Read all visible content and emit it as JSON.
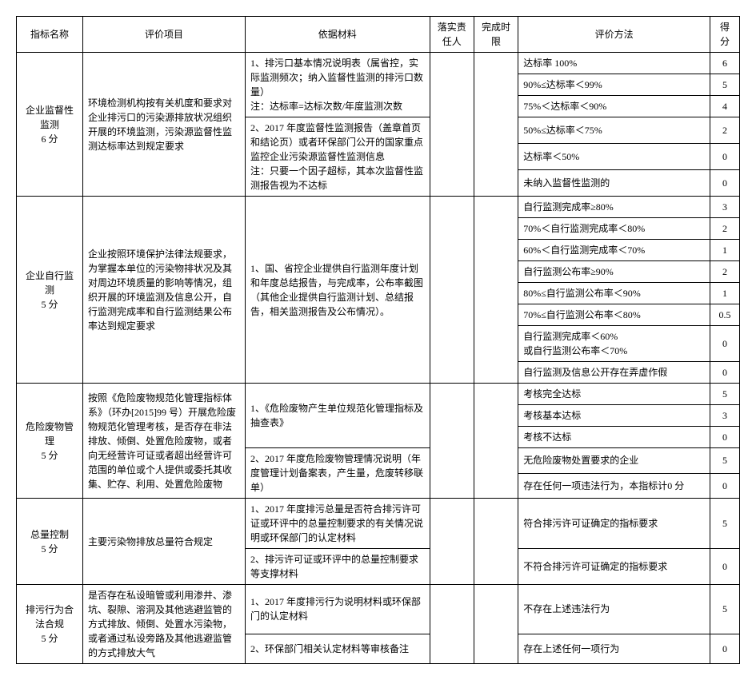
{
  "headers": {
    "indicator": "指标名称",
    "project": "评价项目",
    "material": "依据材料",
    "responsible": "落实责任人",
    "deadline": "完成时限",
    "method": "评价方法",
    "score": "得分"
  },
  "rows": [
    {
      "indicator": "企业监督性监测\n6 分",
      "project": "环境检测机构按有关机度和要求对企业排污口的污染源排放状况组织开展的环境监测，污染源监督性监测达标率达到规定要求",
      "materials": [
        "1、排污口基本情况说明表（属省控，实际监测频次；纳入监督性监测的排污口数量）\n注：达标率=达标次数/年度监测次数",
        "2、2017 年度监督性监测报告（盖章首页和结论页）或者环保部门公开的国家重点监控企业污染源监督性监测信息\n注：只要一个因子超标，其本次监督性监测报告视为不达标"
      ],
      "methods": [
        {
          "text": "达标率 100%",
          "score": "6"
        },
        {
          "text": "90%≤达标率＜99%",
          "score": "5"
        },
        {
          "text": "75%＜达标率＜90%",
          "score": "4"
        },
        {
          "text": "50%≤达标率＜75%",
          "score": "2"
        },
        {
          "text": "达标率＜50%",
          "score": "0"
        },
        {
          "text": "未纳入监督性监测的",
          "score": "0"
        }
      ]
    },
    {
      "indicator": "企业自行监测\n5 分",
      "project": "企业按照环境保护法律法规要求，为掌握本单位的污染物排状况及其对周边环境质量的影响等情况，组织开展的环境监测及信息公开，自行监测完成率和自行监测结果公布率达到规定要求",
      "materials": [
        "1、国、省控企业提供自行监测年度计划和年度总结报告，与完成率，公布率截图（其他企业提供自行监测计划、总结报告，相关监测报告及公布情况）。"
      ],
      "methods": [
        {
          "text": "自行监测完成率≥80%",
          "score": "3"
        },
        {
          "text": "70%＜自行监测完成率＜80%",
          "score": "2"
        },
        {
          "text": "60%＜自行监测完成率＜70%",
          "score": "1"
        },
        {
          "text": "自行监测公布率≥90%",
          "score": "2"
        },
        {
          "text": "80%≤自行监测公布率＜90%",
          "score": "1"
        },
        {
          "text": "70%≤自行监测公布率＜80%",
          "score": "0.5"
        },
        {
          "text": "自行监测完成率＜60%\n或自行监测公布率＜70%",
          "score": "0"
        },
        {
          "text": "自行监测及信息公开存在弄虚作假",
          "score": "0"
        }
      ]
    },
    {
      "indicator": "危险废物管理\n5 分",
      "project": "按照《危险废物规范化管理指标体系》（环办[2015]99 号）开展危险废物规范化管理考核，是否存在非法排放、倾倒、处置危险废物，或者向无经营许可证或者超出经营许可范围的单位或个人提供或委托其收集、贮存、利用、处置危险废物",
      "materials": [
        "1、《危险废物产生单位规范化管理指标及抽查表》",
        "2、2017 年度危险废物管理情况说明（年度管理计划备案表，产生量，危废转移联单）"
      ],
      "methods": [
        {
          "text": "考核完全达标",
          "score": "5"
        },
        {
          "text": "考核基本达标",
          "score": "3"
        },
        {
          "text": "考核不达标",
          "score": "0"
        },
        {
          "text": "无危险废物处置要求的企业",
          "score": "5"
        },
        {
          "text": "存在任何一项违法行为，本指标计0 分",
          "score": "0"
        }
      ]
    },
    {
      "indicator": "总量控制\n5 分",
      "project": "主要污染物排放总量符合规定",
      "materials": [
        "1、2017 年度排污总量是否符合排污许可证或环评中的总量控制要求的有关情况说明或环保部门的认定材料",
        "2、排污许可证或环评中的总量控制要求等支撑材料"
      ],
      "methods": [
        {
          "text": "符合排污许可证确定的指标要求",
          "score": "5"
        },
        {
          "text": "不符合排污许可证确定的指标要求",
          "score": "0"
        }
      ]
    },
    {
      "indicator": "排污行为合法合规\n5 分",
      "project": "是否存在私设暗管或利用渗井、渗坑、裂隙、溶洞及其他逃避监管的方式排放、倾倒、处置水污染物，或者通过私设旁路及其他逃避监管的方式排放大气",
      "materials": [
        "1、2017 年度排污行为说明材料或环保部门的认定材料",
        "2、环保部门相关认定材料等审核备注"
      ],
      "methods": [
        {
          "text": "不存在上述违法行为",
          "score": "5"
        },
        {
          "text": "存在上述任何一项行为",
          "score": "0"
        }
      ]
    }
  ]
}
